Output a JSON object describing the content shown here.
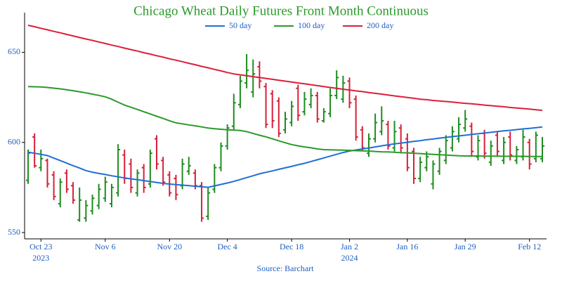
{
  "chart_data": {
    "type": "ohlc",
    "title": "Chicago Wheat Daily Futures Front Month Continuous",
    "source": "Source: Barchart",
    "x": [
      "2023-10-19",
      "2023-10-20",
      "2023-10-23",
      "2023-10-24",
      "2023-10-25",
      "2023-10-26",
      "2023-10-27",
      "2023-10-30",
      "2023-10-31",
      "2023-11-01",
      "2023-11-02",
      "2023-11-03",
      "2023-11-06",
      "2023-11-07",
      "2023-11-08",
      "2023-11-09",
      "2023-11-10",
      "2023-11-13",
      "2023-11-14",
      "2023-11-15",
      "2023-11-16",
      "2023-11-17",
      "2023-11-20",
      "2023-11-21",
      "2023-11-22",
      "2023-11-24",
      "2023-11-27",
      "2023-11-28",
      "2023-11-29",
      "2023-11-30",
      "2023-12-01",
      "2023-12-04",
      "2023-12-05",
      "2023-12-06",
      "2023-12-07",
      "2023-12-08",
      "2023-12-11",
      "2023-12-12",
      "2023-12-13",
      "2023-12-14",
      "2023-12-15",
      "2023-12-18",
      "2023-12-19",
      "2023-12-20",
      "2023-12-21",
      "2023-12-22",
      "2023-12-26",
      "2023-12-27",
      "2023-12-28",
      "2023-12-29",
      "2024-01-02",
      "2024-01-03",
      "2024-01-04",
      "2024-01-05",
      "2024-01-08",
      "2024-01-09",
      "2024-01-10",
      "2024-01-11",
      "2024-01-12",
      "2024-01-16",
      "2024-01-17",
      "2024-01-18",
      "2024-01-19",
      "2024-01-22",
      "2024-01-23",
      "2024-01-24",
      "2024-01-25",
      "2024-01-26",
      "2024-01-29",
      "2024-01-30",
      "2024-01-31",
      "2024-02-01",
      "2024-02-02",
      "2024-02-05",
      "2024-02-06",
      "2024-02-07",
      "2024-02-08",
      "2024-02-09",
      "2024-02-12",
      "2024-02-13",
      "2024-02-14"
    ],
    "open": [
      579,
      603,
      586,
      590,
      582,
      566,
      583,
      576,
      557,
      558,
      562,
      565,
      569,
      566,
      572,
      593,
      588,
      572,
      586,
      577,
      602,
      590,
      582,
      580,
      576,
      584,
      583,
      576,
      559,
      574,
      586,
      598,
      609,
      621,
      633,
      628,
      642,
      631,
      627,
      623,
      607,
      611,
      630,
      617,
      621,
      626,
      612,
      616,
      626,
      624,
      634,
      624,
      607,
      594,
      602,
      606,
      610,
      597,
      608,
      602,
      595,
      580,
      586,
      577,
      584,
      590,
      597,
      602,
      608,
      609,
      592,
      605,
      589,
      604,
      590,
      603,
      590,
      592,
      600,
      591,
      591
    ],
    "high": [
      596,
      605,
      596,
      591,
      584,
      580,
      585,
      578,
      575,
      568,
      571,
      577,
      581,
      577,
      599,
      596,
      591,
      585,
      588,
      596,
      604,
      592,
      584,
      582,
      591,
      592,
      585,
      578,
      575,
      588,
      600,
      610,
      627,
      637,
      649,
      646,
      645,
      633,
      629,
      625,
      617,
      623,
      632,
      628,
      630,
      628,
      619,
      630,
      640,
      637,
      636,
      626,
      609,
      605,
      616,
      620,
      612,
      612,
      610,
      605,
      597,
      592,
      595,
      590,
      597,
      604,
      609,
      614,
      618,
      611,
      604,
      607,
      601,
      606,
      603,
      606,
      598,
      607,
      602,
      606,
      603
    ],
    "low": [
      577,
      586,
      584,
      575,
      568,
      564,
      572,
      566,
      556,
      556,
      560,
      563,
      567,
      564,
      570,
      577,
      572,
      570,
      572,
      575,
      585,
      576,
      570,
      568,
      574,
      582,
      574,
      556,
      557,
      572,
      584,
      596,
      607,
      619,
      630,
      625,
      630,
      608,
      608,
      603,
      605,
      609,
      612,
      615,
      619,
      611,
      611,
      614,
      624,
      622,
      619,
      601,
      595,
      592,
      600,
      604,
      596,
      595,
      594,
      584,
      577,
      578,
      584,
      574,
      582,
      588,
      595,
      600,
      606,
      592,
      590,
      591,
      587,
      592,
      588,
      590,
      588,
      590,
      585,
      589,
      589
    ],
    "close": [
      594,
      587,
      591,
      577,
      570,
      578,
      574,
      568,
      568,
      565,
      569,
      574,
      578,
      575,
      596,
      580,
      575,
      583,
      575,
      594,
      588,
      578,
      572,
      571,
      588,
      587,
      576,
      558,
      572,
      586,
      598,
      608,
      622,
      634,
      640,
      638,
      634,
      610,
      612,
      605,
      613,
      620,
      615,
      624,
      626,
      613,
      617,
      626,
      636,
      633,
      622,
      603,
      597,
      602,
      611,
      612,
      598,
      606,
      597,
      586,
      580,
      589,
      592,
      588,
      595,
      601,
      606,
      610,
      613,
      595,
      601,
      594,
      598,
      595,
      600,
      593,
      596,
      603,
      588,
      604,
      598
    ],
    "up_color": "#1f8c1f",
    "down_color": "#d6203a",
    "series": [
      {
        "name": "50 day",
        "color": "#1f6fd6",
        "values": [
          594.6,
          594.0,
          593.4,
          592.7,
          591.3,
          589.9,
          588.5,
          587.1,
          585.8,
          584.4,
          583.5,
          582.8,
          582.2,
          581.5,
          580.9,
          580.3,
          579.8,
          579.3,
          578.8,
          578.3,
          577.8,
          577.3,
          576.9,
          576.6,
          576.3,
          576.0,
          575.7,
          575.4,
          575.1,
          575.9,
          576.7,
          577.5,
          578.4,
          579.4,
          580.5,
          581.5,
          582.6,
          583.4,
          584.2,
          585.1,
          585.9,
          586.7,
          587.6,
          588.4,
          589.4,
          590.4,
          591.4,
          592.4,
          593.4,
          594.4,
          595.2,
          595.8,
          596.4,
          596.9,
          597.5,
          598.1,
          598.7,
          599.2,
          599.6,
          600.1,
          600.6,
          601.0,
          601.5,
          601.9,
          602.4,
          602.8,
          603.2,
          603.6,
          604.0,
          604.4,
          604.8,
          605.2,
          605.6,
          606.0,
          606.4,
          606.7,
          607.1,
          607.5,
          607.8,
          608.2,
          608.6
        ]
      },
      {
        "name": "100 day",
        "color": "#2a9a2a",
        "values": [
          631.0,
          630.9,
          630.8,
          630.5,
          630.1,
          629.7,
          629.2,
          628.7,
          628.1,
          627.5,
          626.8,
          626.1,
          625.3,
          624.0,
          622.3,
          620.7,
          619.5,
          618.3,
          617.0,
          615.8,
          614.5,
          613.3,
          612.0,
          610.9,
          610.3,
          609.7,
          609.2,
          608.6,
          608.0,
          607.6,
          607.3,
          607.0,
          606.8,
          606.6,
          606.0,
          605.0,
          604.0,
          603.1,
          602.0,
          600.9,
          599.8,
          598.8,
          598.1,
          597.5,
          597.0,
          596.4,
          596.0,
          595.9,
          595.8,
          595.7,
          595.6,
          595.4,
          595.3,
          595.2,
          595.0,
          594.8,
          594.7,
          594.5,
          594.3,
          594.2,
          594.0,
          593.8,
          593.6,
          593.4,
          593.2,
          593.0,
          592.8,
          592.6,
          592.5,
          592.5,
          592.5,
          592.4,
          592.4,
          592.4,
          592.3,
          592.3,
          592.3,
          592.3,
          592.2,
          592.2,
          592.2
        ]
      },
      {
        "name": "200 day",
        "color": "#dc1e3c",
        "values": [
          665.0,
          664.2,
          663.3,
          662.5,
          661.6,
          660.8,
          659.9,
          659.1,
          658.2,
          657.4,
          656.6,
          655.7,
          654.9,
          654.0,
          653.2,
          652.3,
          651.5,
          650.7,
          649.8,
          649.0,
          648.1,
          647.3,
          646.4,
          645.6,
          644.8,
          643.9,
          643.1,
          642.2,
          641.4,
          640.5,
          639.7,
          638.8,
          638.0,
          637.5,
          637.0,
          636.5,
          636.0,
          635.5,
          635.0,
          634.5,
          634.0,
          633.5,
          633.0,
          632.5,
          632.0,
          631.5,
          631.0,
          630.5,
          630.0,
          629.5,
          629.1,
          628.6,
          628.2,
          627.7,
          627.2,
          626.8,
          626.3,
          625.8,
          625.4,
          624.9,
          624.5,
          624.0,
          623.7,
          623.3,
          623.0,
          622.7,
          622.4,
          622.0,
          621.7,
          621.4,
          621.1,
          620.7,
          620.4,
          620.1,
          619.8,
          619.4,
          619.1,
          618.8,
          618.5,
          618.1,
          617.8
        ]
      }
    ],
    "ylim": [
      546.5,
      672
    ],
    "yticks": [
      550,
      600,
      650
    ],
    "xticks": [
      {
        "value": "2023-10-23",
        "label": "Oct 23",
        "year": "2023"
      },
      {
        "value": "2023-11-06",
        "label": "Nov 6"
      },
      {
        "value": "2023-11-20",
        "label": "Nov 20"
      },
      {
        "value": "2023-12-04",
        "label": "Dec 4"
      },
      {
        "value": "2023-12-18",
        "label": "Dec 18"
      },
      {
        "value": "2024-01-02",
        "label": "Jan 2",
        "year": "2024"
      },
      {
        "value": "2024-01-16",
        "label": "Jan 16"
      },
      {
        "value": "2024-01-29",
        "label": "Jan 29"
      },
      {
        "value": "2024-02-12",
        "label": "Feb 12"
      }
    ]
  }
}
